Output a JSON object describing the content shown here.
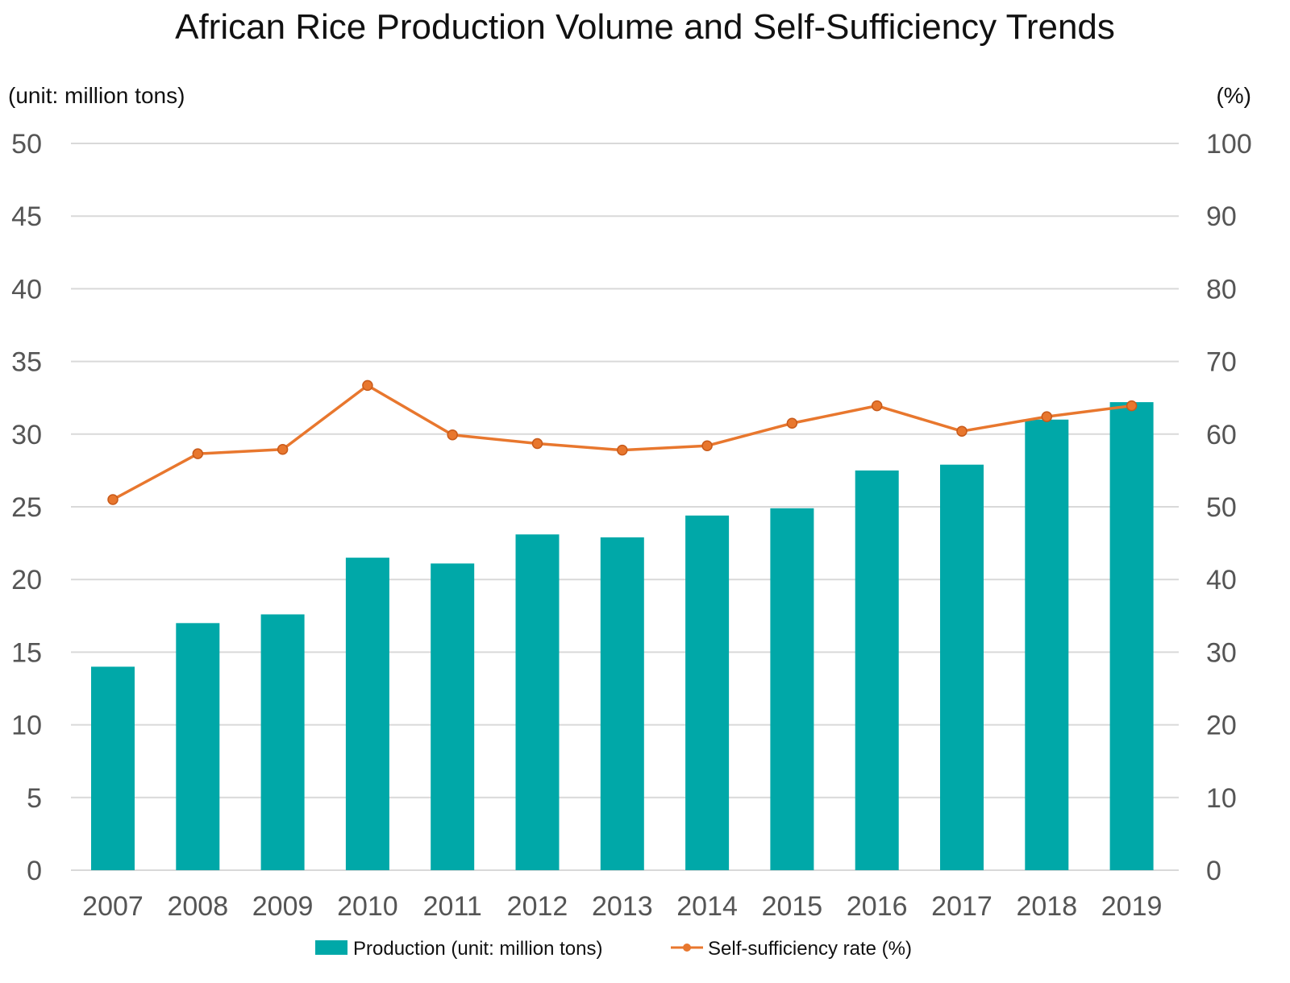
{
  "chart_data": {
    "type": "bar",
    "title": "African Rice Production Volume and Self-Sufficiency Trends",
    "left_axis_unit": "(unit: million tons)",
    "right_axis_unit": "(%)",
    "categories": [
      "2007",
      "2008",
      "2009",
      "2010",
      "2011",
      "2012",
      "2013",
      "2014",
      "2015",
      "2016",
      "2017",
      "2018",
      "2019"
    ],
    "y_left": {
      "range": [
        0,
        50
      ],
      "ticks": [
        "0",
        "5",
        "10",
        "15",
        "20",
        "25",
        "30",
        "35",
        "40",
        "45",
        "50"
      ]
    },
    "y_right": {
      "range": [
        0,
        100
      ],
      "ticks": [
        "0",
        "10",
        "20",
        "30",
        "40",
        "50",
        "60",
        "70",
        "80",
        "90",
        "100"
      ]
    },
    "grid": true,
    "legend_position": "bottom",
    "series": [
      {
        "name": "Production (unit: million tons)",
        "type": "bar",
        "axis": "left",
        "color": "#00a8a8",
        "values": [
          14.0,
          17.0,
          17.6,
          21.5,
          21.1,
          23.1,
          22.9,
          24.4,
          24.9,
          27.5,
          27.9,
          31.0,
          32.2
        ]
      },
      {
        "name": "Self-sufficiency rate (%)",
        "type": "line",
        "axis": "right",
        "color": "#e8772e",
        "values": [
          51.0,
          57.3,
          57.9,
          66.7,
          59.9,
          58.7,
          57.8,
          58.4,
          61.5,
          63.9,
          60.4,
          62.4,
          63.9
        ]
      }
    ]
  }
}
